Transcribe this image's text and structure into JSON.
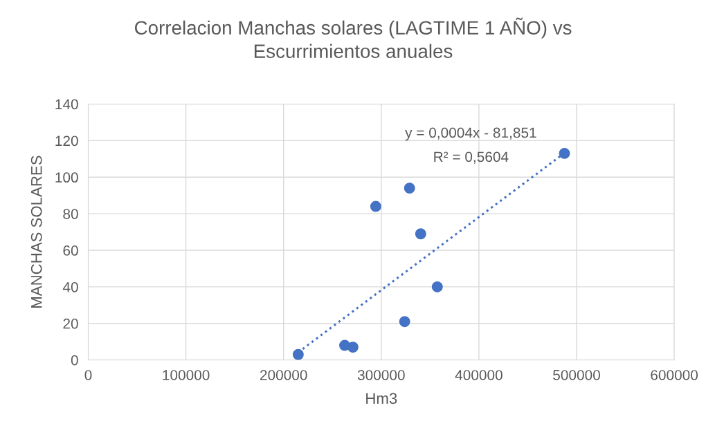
{
  "chart_data": {
    "type": "scatter",
    "title": "Correlacion Manchas solares (LAGTIME 1 AÑO) vs\nEscurrimientos anuales",
    "xlabel": "Hm3",
    "ylabel": "MANCHAS SOLARES",
    "series": [
      {
        "color": "#4472c4",
        "marker": "circle",
        "x": [
          215000,
          262600,
          271000,
          294400,
          324000,
          329000,
          340400,
          357400,
          487600
        ],
        "values": [
          3,
          8,
          7,
          84,
          21,
          94,
          69,
          40,
          113
        ]
      },
      {
        "type": "line",
        "color": "#4472c4",
        "line_style": "dotted",
        "marker": "none",
        "x": [
          215000,
          487600
        ],
        "values": [
          4.2,
          113.2
        ]
      }
    ],
    "annotations": [
      "y = 0,0004x - 81,851",
      "R² = 0,5604"
    ],
    "xlim": [
      0,
      600000
    ],
    "xticks": [
      0,
      100000,
      200000,
      300000,
      400000,
      500000,
      600000
    ],
    "ylim": [
      0,
      140
    ],
    "yticks": [
      0,
      20,
      40,
      60,
      80,
      100,
      120,
      140
    ],
    "grid": true,
    "legend": false
  }
}
